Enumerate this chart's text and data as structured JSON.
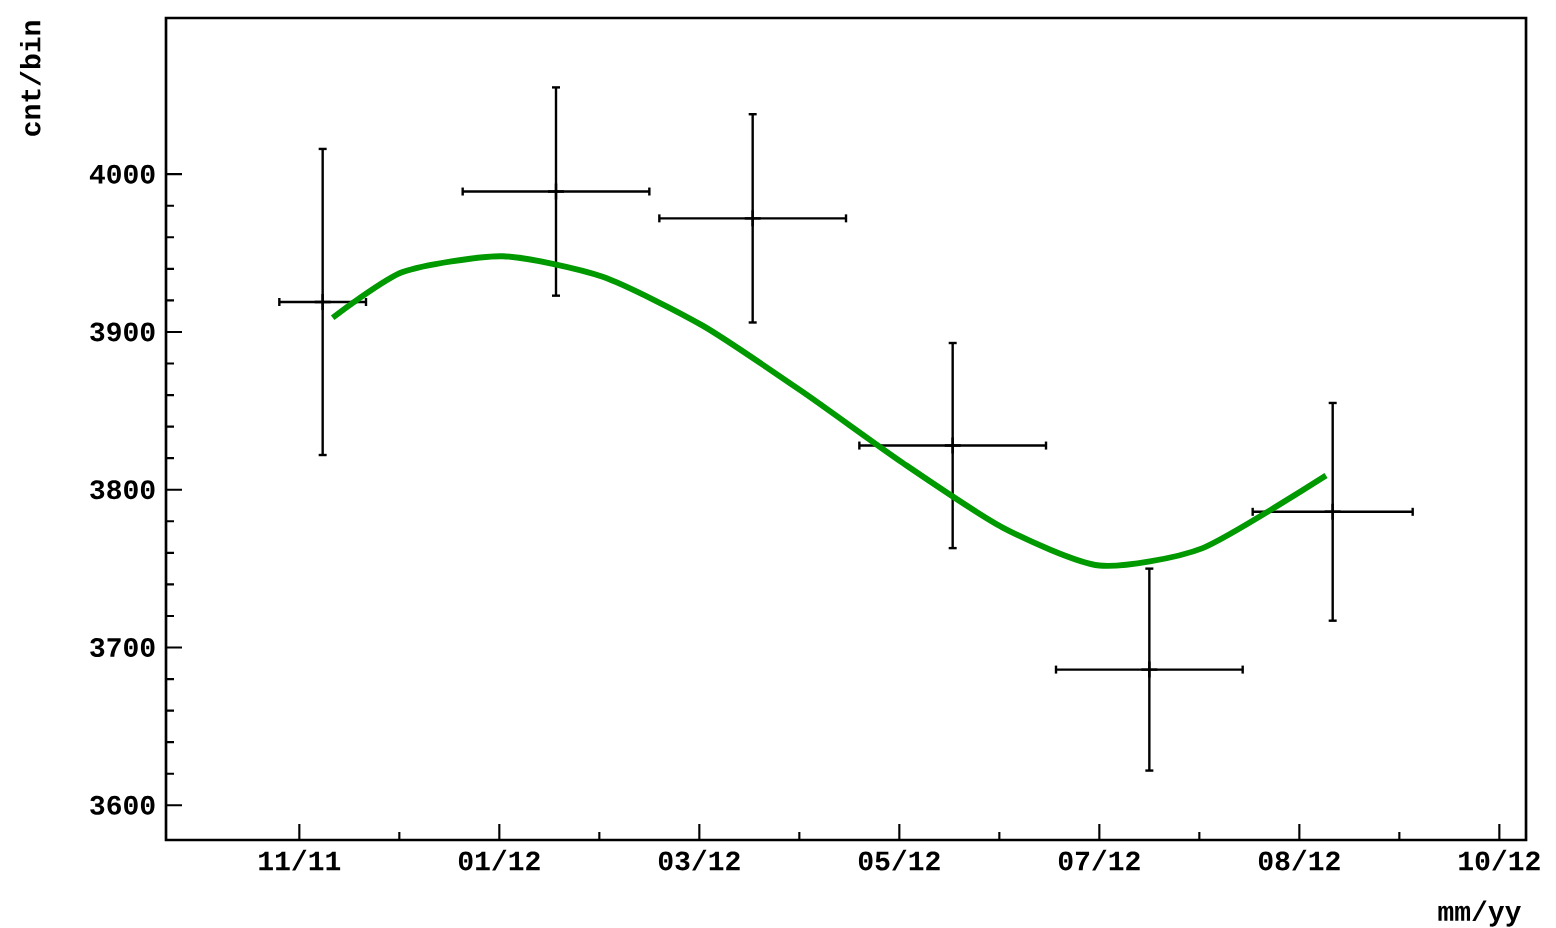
{
  "chart_data": {
    "type": "scatter",
    "xlabel": "mm/yy",
    "ylabel": "cnt/bin",
    "xlim": [
      "2011-09-25",
      "2012-11-06"
    ],
    "ylim": [
      3578,
      4099
    ],
    "xticks": [
      {
        "value": "2011-11-04",
        "label": "11/11"
      },
      {
        "value": "2012-01-03",
        "label": "01/12"
      },
      {
        "value": "2012-03-03",
        "label": "03/12"
      },
      {
        "value": "2012-05-02",
        "label": "05/12"
      },
      {
        "value": "2012-07-01",
        "label": "07/12"
      },
      {
        "value": "2012-08-30",
        "label": "08/12"
      },
      {
        "value": "2012-10-29",
        "label": "10/12"
      }
    ],
    "yticks": [
      3600,
      3700,
      3800,
      3900,
      4000
    ],
    "series": [
      {
        "color": "#000000",
        "marker": "cross",
        "x": [
          "2011-11-11",
          "2012-01-20",
          "2012-03-19",
          "2012-05-18",
          "2012-07-16",
          "2012-09-09"
        ],
        "values": [
          3919,
          3989,
          3972,
          3828,
          3686,
          3786
        ],
        "errors": [
          97,
          66,
          66,
          65,
          64,
          69
        ],
        "xerrors": [
          13,
          28,
          28,
          28,
          28,
          24
        ]
      },
      {
        "type": "line",
        "color": "#009900",
        "marker": "none",
        "x": [
          "2011-11-14",
          "2011-12-05",
          "2012-01-04",
          "2012-02-03",
          "2012-03-04",
          "2012-04-03",
          "2012-05-03",
          "2012-06-02",
          "2012-07-01",
          "2012-08-01",
          "2012-09-07"
        ],
        "values": [
          3909,
          3938,
          3948,
          3935,
          3904,
          3862,
          3817,
          3776,
          3752,
          3763,
          3809
        ]
      }
    ]
  }
}
